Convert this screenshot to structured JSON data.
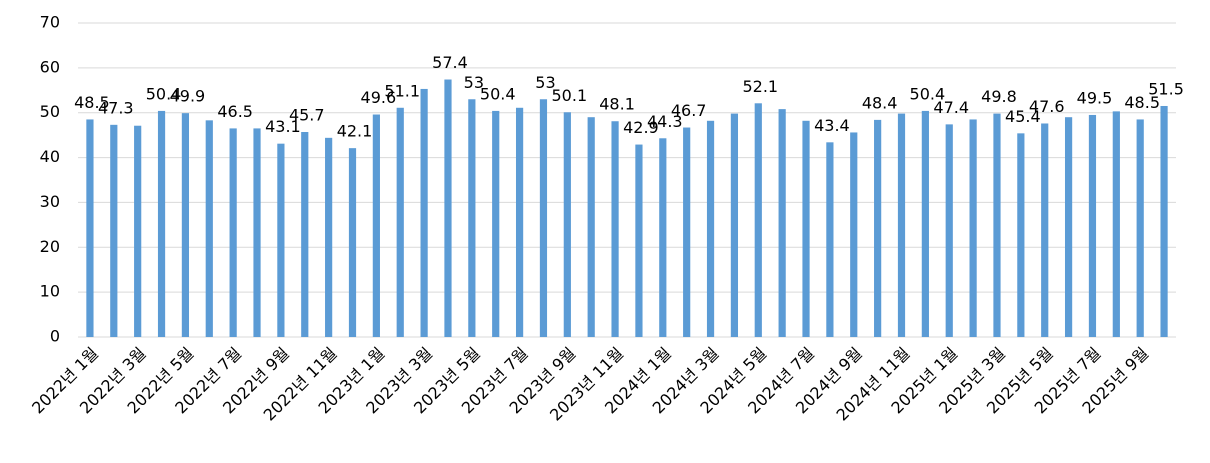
{
  "chart_data": {
    "type": "bar",
    "categories": [
      "2022년 1월",
      null,
      "2022년 3월",
      null,
      "2022년 5월",
      null,
      "2022년 7월",
      null,
      "2022년 9월",
      null,
      "2022년 11월",
      null,
      "2023년 1월",
      null,
      "2023년 3월",
      null,
      "2023년 5월",
      null,
      "2023년 7월",
      null,
      "2023년 9월",
      null,
      "2023년 11월",
      null,
      "2024년 1월",
      null,
      "2024년 3월",
      null,
      "2024년 5월",
      null,
      "2024년 7월",
      null,
      "2024년 9월",
      null,
      "2024년 11월",
      null,
      "2025년 1월",
      null,
      "2025년 3월",
      null,
      "2025년 5월",
      null,
      "2025년 7월",
      null,
      "2025년 9월",
      null
    ],
    "values": [
      48.5,
      47.3,
      47.1,
      50.4,
      49.9,
      48.3,
      46.5,
      46.5,
      43.1,
      45.7,
      44.4,
      42.1,
      49.6,
      51.1,
      55.3,
      57.4,
      53,
      50.4,
      51.1,
      53,
      50.1,
      49.0,
      48.1,
      42.9,
      44.3,
      46.7,
      48.2,
      49.8,
      52.1,
      50.8,
      48.2,
      43.4,
      45.6,
      48.4,
      49.8,
      50.4,
      47.4,
      48.5,
      49.8,
      45.4,
      47.6,
      49.0,
      49.5,
      50.3,
      48.5,
      51.5
    ],
    "value_labels": [
      "48.5",
      "47.3",
      null,
      "50.4",
      "49.9",
      null,
      "46.5",
      null,
      "43.1",
      "45.7",
      null,
      "42.1",
      "49.6",
      "51.1",
      null,
      "57.4",
      "53",
      "50.4",
      null,
      "53",
      "50.1",
      null,
      "48.1",
      "42.9",
      "44.3",
      "46.7",
      null,
      null,
      "52.1",
      null,
      null,
      "43.4",
      null,
      "48.4",
      null,
      "50.4",
      "47.4",
      null,
      "49.8",
      "45.4",
      "47.6",
      null,
      "49.5",
      null,
      "48.5",
      "51.5"
    ],
    "color": "#5b9bd5",
    "ylim": [
      0,
      70
    ],
    "yticks": [
      0,
      10,
      20,
      30,
      40,
      50,
      60,
      70
    ],
    "grid": true
  }
}
